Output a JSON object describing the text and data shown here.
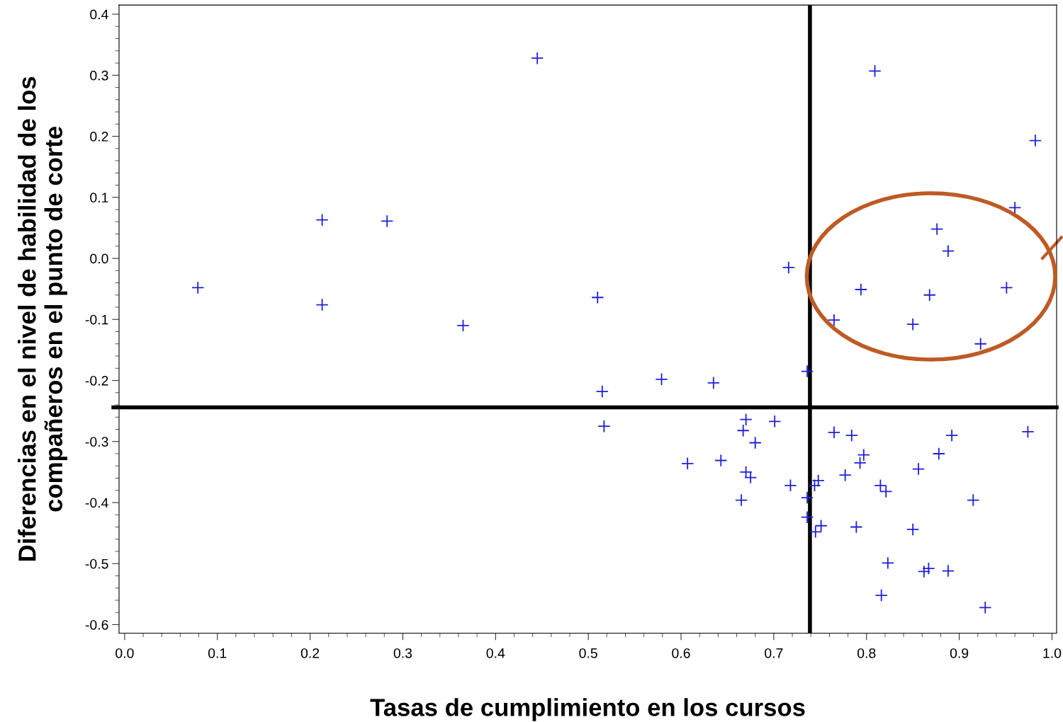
{
  "chart_data": {
    "type": "scatter",
    "xlabel": "Tasas de cumplimiento en los cursos",
    "ylabel": "Diferencias en el nivel de habilidad de los\ncompañeros en el punto de corte",
    "x": [
      0.445,
      0.809,
      0.982,
      0.96,
      0.213,
      0.283,
      0.876,
      0.888,
      0.716,
      0.079,
      0.794,
      0.951,
      0.868,
      0.51,
      0.213,
      0.765,
      0.85,
      0.365,
      0.923,
      0.736,
      0.579,
      0.635,
      0.515,
      0.517,
      0.67,
      0.667,
      0.701,
      0.974,
      0.765,
      0.784,
      0.892,
      0.68,
      0.797,
      0.878,
      0.607,
      0.643,
      0.793,
      0.856,
      0.67,
      0.675,
      0.777,
      0.748,
      0.744,
      0.718,
      0.815,
      0.821,
      0.736,
      0.665,
      0.915,
      0.736,
      0.751,
      0.745,
      0.789,
      0.85,
      0.823,
      0.862,
      0.867,
      0.888,
      0.816,
      0.928
    ],
    "series": [
      {
        "color": "#2020d8",
        "values": [
          0.328,
          0.307,
          0.193,
          0.083,
          0.063,
          0.061,
          0.048,
          0.012,
          -0.015,
          -0.048,
          -0.051,
          -0.048,
          -0.06,
          -0.064,
          -0.076,
          -0.101,
          -0.108,
          -0.11,
          -0.14,
          -0.185,
          -0.198,
          -0.204,
          -0.218,
          -0.275,
          -0.264,
          -0.282,
          -0.267,
          -0.284,
          -0.285,
          -0.29,
          -0.29,
          -0.302,
          -0.322,
          -0.32,
          -0.336,
          -0.331,
          -0.335,
          -0.345,
          -0.35,
          -0.359,
          -0.355,
          -0.364,
          -0.372,
          -0.372,
          -0.372,
          -0.382,
          -0.392,
          -0.396,
          -0.396,
          -0.424,
          -0.438,
          -0.448,
          -0.44,
          -0.444,
          -0.499,
          -0.513,
          -0.508,
          -0.512,
          -0.552,
          -0.572
        ]
      }
    ],
    "marker": "cross",
    "xlim": [
      -0.006,
      1.005
    ],
    "ylim": [
      -0.614,
      0.415
    ],
    "xticks": [
      {
        "value": 0,
        "label": "0.0"
      },
      0.1,
      0.2,
      0.3,
      0.4,
      0.5,
      0.6,
      0.7,
      0.8,
      0.9,
      {
        "value": 1,
        "label": "1.0"
      }
    ],
    "yticks": [
      -0.6,
      -0.5,
      -0.4,
      -0.3,
      -0.2,
      -0.1,
      {
        "value": 0,
        "label": "0.0"
      },
      0.1,
      0.2,
      0.3,
      0.4
    ],
    "ref_lines": [
      {
        "axis": "x",
        "value": 0.739,
        "color": "#000000"
      },
      {
        "axis": "y",
        "value": -0.244,
        "color": "#000000"
      }
    ],
    "grid": false,
    "legend": false
  }
}
